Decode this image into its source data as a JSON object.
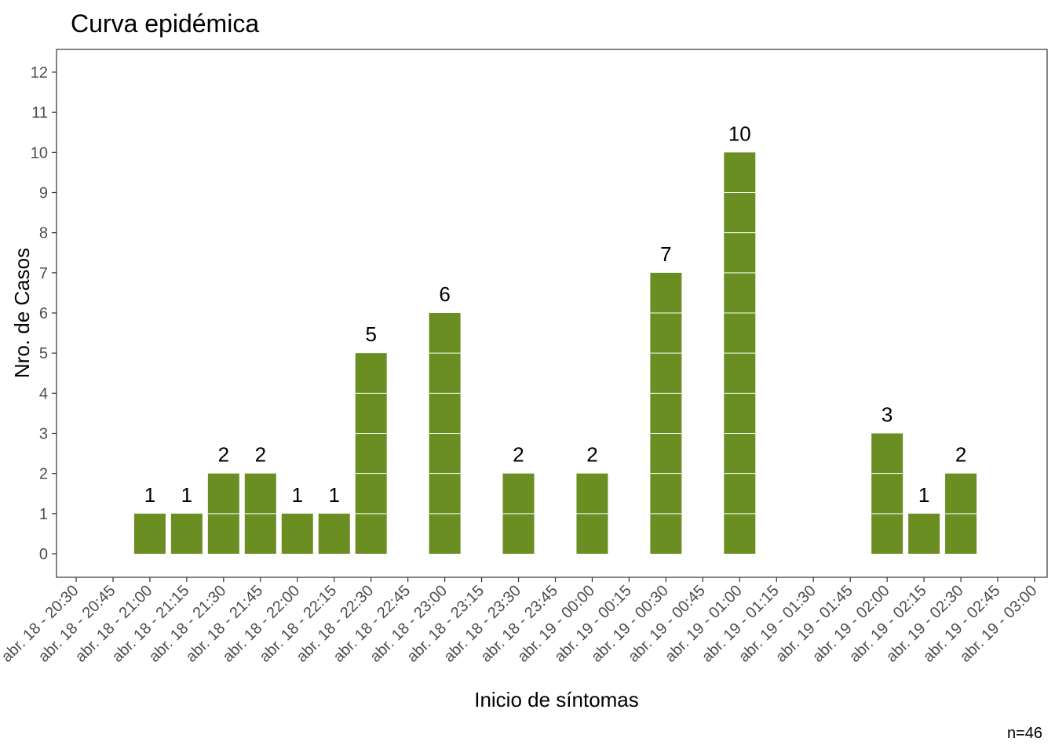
{
  "chart_data": {
    "type": "bar",
    "title": "Curva epidémica",
    "xlabel": "Inicio de síntomas",
    "ylabel": "Nro. de Casos",
    "caption": "n=46",
    "ylim": [
      0,
      12
    ],
    "yticks": [
      "0",
      "1",
      "2",
      "3",
      "4",
      "5",
      "6",
      "7",
      "8",
      "9",
      "10",
      "11",
      "12"
    ],
    "categories": [
      "abr. 18 - 20:30",
      "abr. 18 - 20:45",
      "abr. 18 - 21:00",
      "abr. 18 - 21:15",
      "abr. 18 - 21:30",
      "abr. 18 - 21:45",
      "abr. 18 - 22:00",
      "abr. 18 - 22:15",
      "abr. 18 - 22:30",
      "abr. 18 - 22:45",
      "abr. 18 - 23:00",
      "abr. 18 - 23:15",
      "abr. 18 - 23:30",
      "abr. 18 - 23:45",
      "abr. 19 - 00:00",
      "abr. 19 - 00:15",
      "abr. 19 - 00:30",
      "abr. 19 - 00:45",
      "abr. 19 - 01:00",
      "abr. 19 - 01:15",
      "abr. 19 - 01:30",
      "abr. 19 - 01:45",
      "abr. 19 - 02:00",
      "abr. 19 - 02:15",
      "abr. 19 - 02:30",
      "abr. 19 - 02:45",
      "abr. 19 - 03:00"
    ],
    "bars": [
      {
        "x": "abr. 18 - 21:00",
        "value": 1
      },
      {
        "x": "abr. 18 - 21:15",
        "value": 1
      },
      {
        "x": "abr. 18 - 21:30",
        "value": 2
      },
      {
        "x": "abr. 18 - 21:45",
        "value": 2
      },
      {
        "x": "abr. 18 - 22:00",
        "value": 1
      },
      {
        "x": "abr. 18 - 22:15",
        "value": 1
      },
      {
        "x": "abr. 18 - 22:30",
        "value": 5
      },
      {
        "x": "abr. 18 - 23:00",
        "value": 6
      },
      {
        "x": "abr. 18 - 23:30",
        "value": 2
      },
      {
        "x": "abr. 19 - 00:00",
        "value": 2
      },
      {
        "x": "abr. 19 - 00:30",
        "value": 7
      },
      {
        "x": "abr. 19 - 01:00",
        "value": 10
      },
      {
        "x": "abr. 19 - 02:00",
        "value": 3
      },
      {
        "x": "abr. 19 - 02:15",
        "value": 1
      },
      {
        "x": "abr. 19 - 02:30",
        "value": 2
      }
    ],
    "bar_color": "#6b8e23",
    "case_divider_color": "#ffffff",
    "grid": false
  }
}
